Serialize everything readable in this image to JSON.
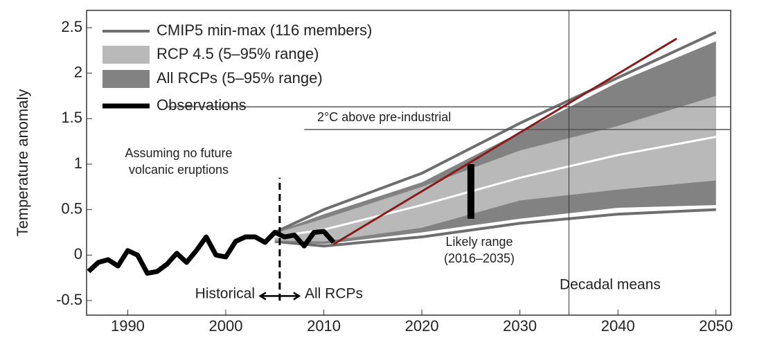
{
  "chart_data": {
    "type": "line",
    "y_label": "Temperature anomaly",
    "xlim": [
      1985.8,
      2051.5
    ],
    "ylim": [
      -0.66,
      2.69
    ],
    "xticks": [
      1990,
      2000,
      2010,
      2020,
      2030,
      2040,
      2050
    ],
    "yticks": [
      -0.5,
      0,
      0.5,
      1,
      1.5,
      2,
      2.5
    ],
    "legend": "upper left",
    "series": [
      {
        "name": "CMIP5 min-max (116 members)",
        "kind": "range-lines",
        "color": "#6e6e6e",
        "x": [
          2005,
          2010,
          2020,
          2030,
          2040,
          2050
        ],
        "upper": [
          0.25,
          0.5,
          0.9,
          1.45,
          1.95,
          2.45
        ],
        "lower": [
          0.15,
          0.1,
          0.2,
          0.35,
          0.45,
          0.5
        ]
      },
      {
        "name": "All RCPs (5–95% range)",
        "kind": "band",
        "color": "#828282",
        "x": [
          2005,
          2010,
          2020,
          2030,
          2040,
          2050
        ],
        "upper": [
          0.25,
          0.45,
          0.8,
          1.35,
          1.9,
          2.35
        ],
        "lower": [
          0.15,
          0.12,
          0.25,
          0.4,
          0.52,
          0.55
        ]
      },
      {
        "name": "RCP 4.5 (5–95% range)",
        "kind": "band",
        "color": "#b9b9b9",
        "x": [
          2005,
          2010,
          2020,
          2030,
          2040,
          2050
        ],
        "upper": [
          0.24,
          0.4,
          0.75,
          1.15,
          1.42,
          1.75
        ],
        "lower": [
          0.16,
          0.15,
          0.3,
          0.6,
          0.72,
          0.82
        ]
      },
      {
        "name": "Observations",
        "kind": "line",
        "color": "#000000",
        "width": 7,
        "x": [
          1986,
          1987,
          1988,
          1989,
          1990,
          1991,
          1992,
          1993,
          1994,
          1995,
          1996,
          1997,
          1998,
          1999,
          2000,
          2001,
          2002,
          2003,
          2004,
          2005,
          2006,
          2007,
          2008,
          2009,
          2010,
          2011
        ],
        "values": [
          -0.18,
          -0.08,
          -0.05,
          -0.12,
          0.05,
          0.0,
          -0.2,
          -0.18,
          -0.1,
          0.02,
          -0.08,
          0.05,
          0.2,
          0.0,
          -0.02,
          0.15,
          0.2,
          0.2,
          0.14,
          0.25,
          0.2,
          0.22,
          0.1,
          0.25,
          0.26,
          0.14
        ]
      }
    ],
    "median": {
      "color": "#ffffff",
      "x": [
        2005,
        2010,
        2020,
        2030,
        2040,
        2050
      ],
      "values": [
        0.2,
        0.28,
        0.55,
        0.85,
        1.1,
        1.3
      ]
    },
    "trend": {
      "color": "#8b1a1a",
      "x": [
        2011,
        2046
      ],
      "values": [
        0.12,
        2.38
      ]
    },
    "hlines": [
      {
        "y": 1.63,
        "x": [
          1994,
          2051.5
        ]
      },
      {
        "y": 1.38,
        "x": [
          2008,
          2051.5
        ]
      }
    ],
    "vline": {
      "x": 2035
    },
    "divider": {
      "x": 2005.5,
      "y": [
        -0.5,
        0.85
      ]
    },
    "likely_bar": {
      "x": 2025,
      "y": [
        0.4,
        1.0
      ]
    },
    "annotations": [
      "Assuming no future",
      "volcanic eruptions",
      "2°C above pre-industrial",
      "Likely range",
      "(2016–2035)",
      "Historical",
      "All RCPs",
      "Decadal means"
    ]
  }
}
